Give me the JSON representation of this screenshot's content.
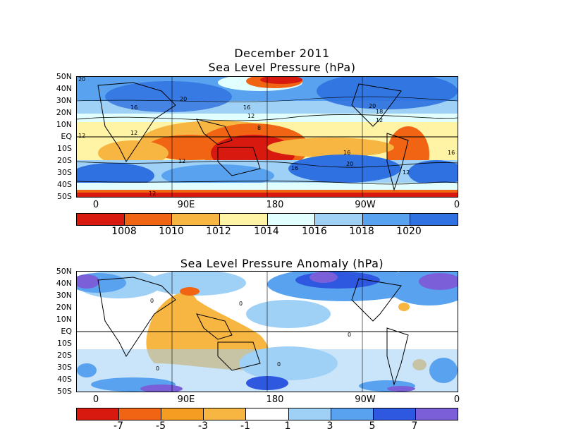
{
  "figure": {
    "title_line1": "December 2011",
    "title_line2": "Sea Level Pressure (hPa)",
    "anomaly_title": "Sea Level Pressure Anomaly (hPa)"
  },
  "axes": {
    "lat_labels": [
      "50N",
      "40N",
      "30N",
      "20N",
      "10N",
      "EQ",
      "10S",
      "20S",
      "30S",
      "40S",
      "50S"
    ],
    "lon_labels": [
      "0",
      "90E",
      "180",
      "90W",
      "0"
    ]
  },
  "slp_panel": {
    "contour_labels": [
      "20",
      "20",
      "16",
      "16",
      "12",
      "12",
      "8",
      "12",
      "12",
      "16",
      "20",
      "16",
      "16",
      "12",
      "12",
      "20",
      "18",
      "12"
    ],
    "colorbar_labels": [
      "1008",
      "1010",
      "1012",
      "1014",
      "1016",
      "1018",
      "1020"
    ],
    "colorbar_colors": [
      "#d7190f",
      "#f06414",
      "#f7b541",
      "#fff4a6",
      "#e2ffff",
      "#9fd0f6",
      "#58a2ef",
      "#2f71e0"
    ]
  },
  "anomaly_panel": {
    "contour_labels": [
      "0",
      "0",
      "0",
      "0",
      "0"
    ],
    "colorbar_labels": [
      "-7",
      "-5",
      "-3",
      "-1",
      "1",
      "3",
      "5",
      "7"
    ],
    "colorbar_colors": [
      "#d7190f",
      "#f06414",
      "#f59c22",
      "#f7b541",
      "#ffffff",
      "#9fd0f6",
      "#58a2ef",
      "#2f58e0",
      "#7a5fd8"
    ]
  },
  "colors": {
    "land_outline": "#000000",
    "grid_line": "#000000"
  }
}
